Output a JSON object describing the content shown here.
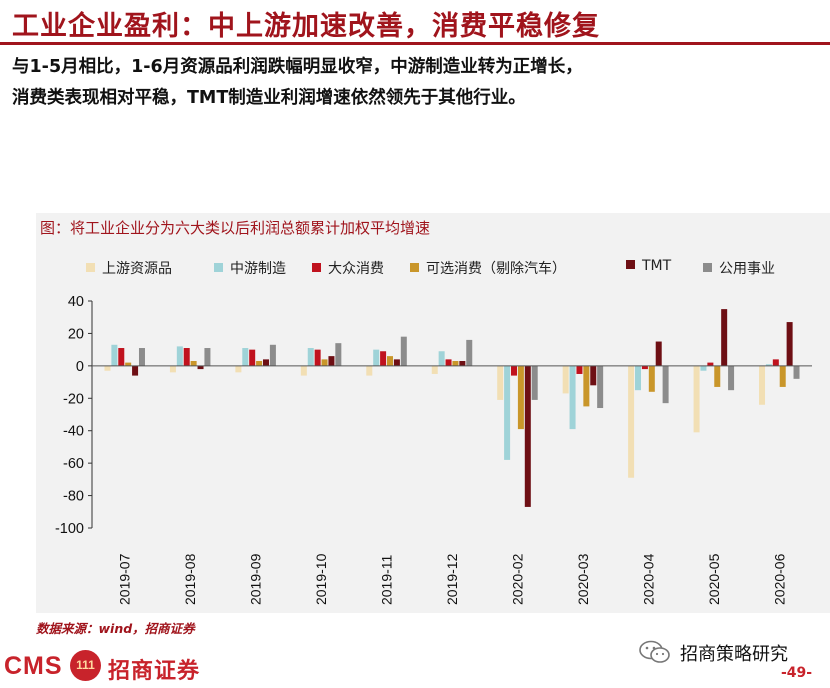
{
  "header": {
    "title": "工业企业盈利：中上游加速改善，消费平稳修复",
    "subtitle_line1": "与1-5月相比，1-6月资源品利润跌幅明显收窄，中游制造业转为正增长，",
    "subtitle_line2": "消费类表现相对平稳，TMT制造业利润增速依然领先于其他行业。"
  },
  "figure": {
    "caption": "图：将工业企业分为六大类以后利润总额累计加权平均增速",
    "source": "数据来源：wind，招商证券"
  },
  "chart_data": {
    "type": "bar",
    "categories": [
      "2019-07",
      "2019-08",
      "2019-09",
      "2019-10",
      "2019-11",
      "2019-12",
      "2020-02",
      "2020-03",
      "2020-04",
      "2020-05",
      "2020-06"
    ],
    "ylim": [
      -100,
      40
    ],
    "yticks": [
      40,
      20,
      0,
      -20,
      -40,
      -60,
      -80,
      -100
    ],
    "grid": false,
    "legend_position": "top",
    "series": [
      {
        "name": "上游资源品",
        "color": "#f2dfb4",
        "values": [
          -3,
          -4,
          -4,
          -6,
          -6,
          -5,
          -21,
          -17,
          -69,
          -41,
          -24
        ]
      },
      {
        "name": "中游制造",
        "color": "#9fd3d8",
        "values": [
          13,
          12,
          11,
          11,
          10,
          9,
          -58,
          -39,
          -15,
          -3,
          1
        ]
      },
      {
        "name": "大众消费",
        "color": "#c0121e",
        "values": [
          11,
          11,
          10,
          10,
          9,
          4,
          -6,
          -5,
          -2,
          2,
          4
        ]
      },
      {
        "name": "可选消费（剔除汽车）",
        "color": "#c9962a",
        "values": [
          2,
          3,
          3,
          4,
          6,
          3,
          -39,
          -25,
          -16,
          -13,
          -13
        ]
      },
      {
        "name": "TMT",
        "color": "#6e0f14",
        "values": [
          -6,
          -2,
          4,
          6,
          4,
          3,
          -87,
          -12,
          15,
          35,
          27
        ]
      },
      {
        "name": "公用事业",
        "color": "#8c8c8c",
        "values": [
          11,
          11,
          13,
          14,
          18,
          16,
          -21,
          -26,
          -23,
          -15,
          -8
        ]
      }
    ]
  },
  "branding": {
    "logo_cms": "CMS",
    "logo_seal": "111",
    "logo_name": "招商证券",
    "wechat_account": "招商策略研究",
    "page_number": "-49-"
  },
  "colors": {
    "accent": "#a0141c",
    "brand_red": "#c8232b",
    "panel_bg": "#f2f2f2"
  }
}
